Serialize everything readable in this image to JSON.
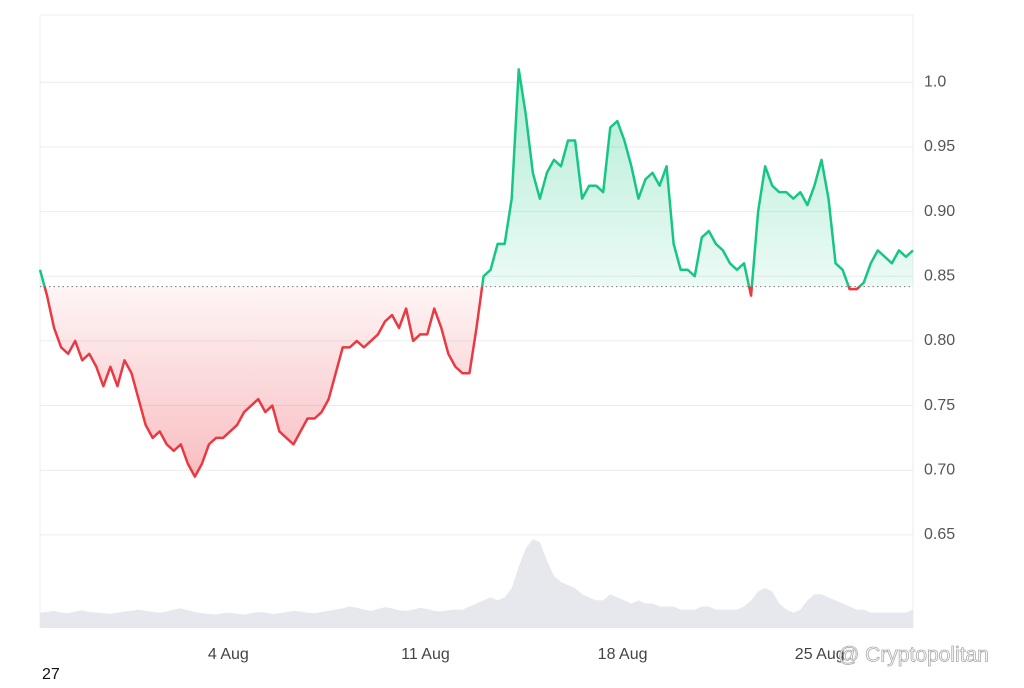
{
  "chart_data": {
    "type": "line",
    "values": [
      0.855,
      0.835,
      0.81,
      0.795,
      0.79,
      0.8,
      0.785,
      0.79,
      0.78,
      0.765,
      0.78,
      0.765,
      0.785,
      0.775,
      0.755,
      0.735,
      0.725,
      0.73,
      0.72,
      0.715,
      0.72,
      0.705,
      0.695,
      0.705,
      0.72,
      0.725,
      0.725,
      0.73,
      0.735,
      0.745,
      0.75,
      0.755,
      0.745,
      0.75,
      0.73,
      0.725,
      0.72,
      0.73,
      0.74,
      0.74,
      0.745,
      0.755,
      0.775,
      0.795,
      0.795,
      0.8,
      0.795,
      0.8,
      0.805,
      0.815,
      0.82,
      0.81,
      0.825,
      0.8,
      0.805,
      0.805,
      0.825,
      0.81,
      0.79,
      0.78,
      0.775,
      0.775,
      0.81,
      0.85,
      0.855,
      0.875,
      0.875,
      0.91,
      1.01,
      0.975,
      0.93,
      0.91,
      0.93,
      0.94,
      0.935,
      0.955,
      0.955,
      0.91,
      0.92,
      0.92,
      0.915,
      0.965,
      0.97,
      0.955,
      0.935,
      0.91,
      0.925,
      0.93,
      0.92,
      0.935,
      0.875,
      0.855,
      0.855,
      0.85,
      0.88,
      0.885,
      0.875,
      0.87,
      0.86,
      0.855,
      0.86,
      0.835,
      0.9,
      0.935,
      0.92,
      0.915,
      0.915,
      0.91,
      0.915,
      0.905,
      0.92,
      0.94,
      0.91,
      0.86,
      0.855,
      0.84,
      0.84,
      0.845,
      0.86,
      0.87,
      0.865,
      0.86,
      0.87,
      0.865,
      0.87
    ],
    "volume": [
      2.5,
      2.6,
      2.8,
      2.5,
      2.4,
      2.7,
      2.9,
      2.6,
      2.5,
      2.4,
      2.3,
      2.5,
      2.7,
      2.8,
      3,
      2.8,
      2.6,
      2.5,
      2.7,
      3,
      3.2,
      2.9,
      2.6,
      2.4,
      2.3,
      2.2,
      2.4,
      2.5,
      2.3,
      2.2,
      2.4,
      2.6,
      2.5,
      2.3,
      2.4,
      2.6,
      2.8,
      2.7,
      2.5,
      2.4,
      2.6,
      2.8,
      3,
      3.2,
      3.5,
      3.3,
      3,
      2.8,
      3.1,
      3.4,
      3.2,
      2.9,
      2.8,
      3,
      3.3,
      3.1,
      2.8,
      2.7,
      2.9,
      3,
      3,
      3.5,
      4,
      4.5,
      5,
      4.5,
      5,
      6.5,
      10,
      13,
      14.5,
      14,
      11,
      8.5,
      7.5,
      7,
      6.5,
      5.5,
      5,
      4.5,
      4.5,
      5.5,
      5,
      4.5,
      4,
      4.5,
      4,
      4,
      3.5,
      3.5,
      3.5,
      3,
      3,
      3,
      3.5,
      3.5,
      3,
      3,
      3,
      3,
      3.5,
      4.5,
      6,
      6.5,
      6,
      4,
      3,
      2.5,
      3,
      4.5,
      5.5,
      5.5,
      5,
      4.5,
      4,
      3.5,
      3,
      3,
      2.5,
      2.5,
      2.5,
      2.5,
      2.5,
      2.5,
      3
    ],
    "baseline": 0.842,
    "up_color": "#16c784",
    "down_color": "#ea3943",
    "volume_color": "#e6e8ee",
    "xlim": [
      0,
      124
    ],
    "ylim": [
      0.578,
      1.052
    ],
    "y2lim": [
      0,
      100
    ],
    "yticks": [
      0.65,
      {
        "value": 0.7,
        "label": "0.70"
      },
      0.75,
      {
        "value": 0.8,
        "label": "0.80"
      },
      0.85,
      {
        "value": 0.9,
        "label": "0.90"
      },
      0.95,
      {
        "value": 1.0,
        "label": "1.0"
      }
    ],
    "xticks": [
      {
        "value": 26.75,
        "label": "4 Aug"
      },
      {
        "value": 54.75,
        "label": "11 Aug"
      },
      {
        "value": 82.75,
        "label": "18 Aug"
      },
      {
        "value": 110.75,
        "label": "25 Aug"
      }
    ],
    "corner_label": "27",
    "watermark": "@ Cryptopolitan",
    "grid": true
  }
}
